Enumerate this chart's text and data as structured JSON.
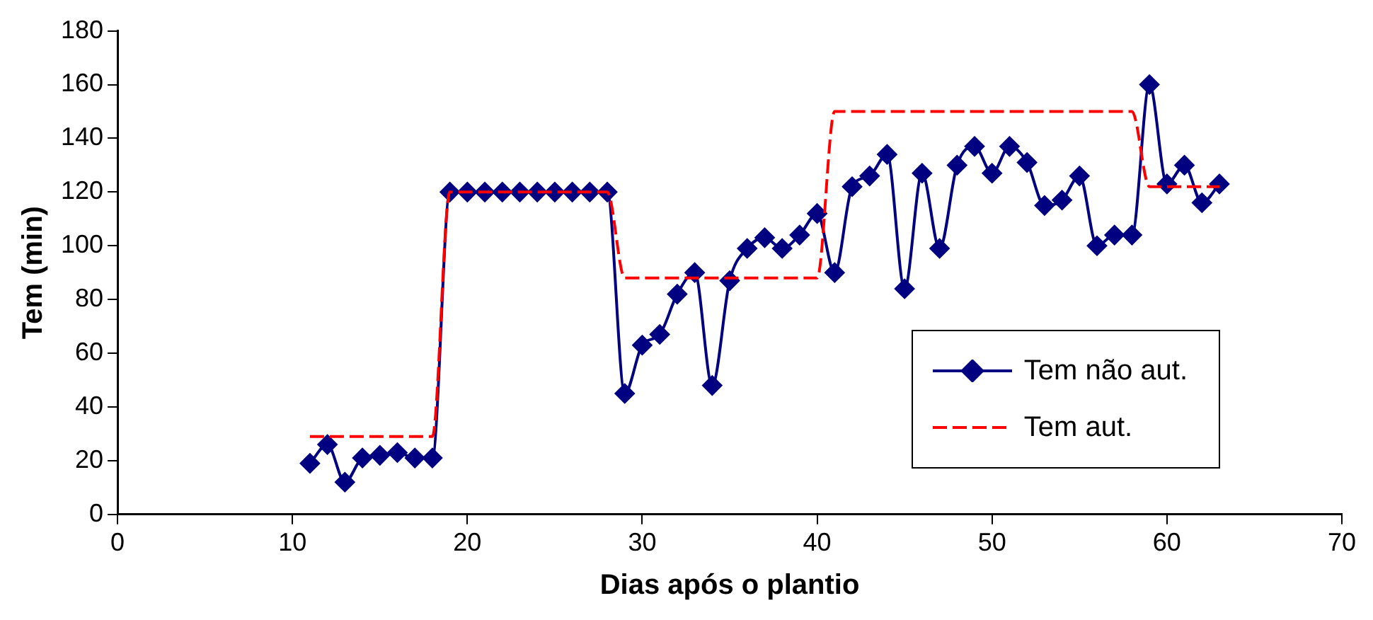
{
  "chart_data": {
    "type": "line",
    "xlabel": "Dias após o plantio",
    "ylabel": "Tem (min)",
    "xlim": [
      0,
      70
    ],
    "xticks": [
      0,
      10,
      20,
      30,
      40,
      50,
      60,
      70
    ],
    "ylim": [
      0,
      180
    ],
    "yticks": [
      0,
      20,
      40,
      60,
      80,
      100,
      120,
      140,
      160,
      180
    ],
    "grid": false,
    "legend": "right",
    "series": [
      {
        "name": "Tem não aut.",
        "color": "#000080",
        "marker": "diamond",
        "line_style": "solid",
        "x": [
          11,
          12,
          13,
          14,
          15,
          16,
          17,
          18,
          19,
          20,
          21,
          22,
          23,
          24,
          25,
          26,
          27,
          28,
          29,
          30,
          31,
          32,
          33,
          34,
          35,
          36,
          37,
          38,
          39,
          40,
          41,
          42,
          43,
          44,
          45,
          46,
          47,
          48,
          49,
          50,
          51,
          52,
          53,
          54,
          55,
          56,
          57,
          58,
          59,
          60,
          61,
          62,
          63
        ],
        "values": [
          19,
          26,
          12,
          21,
          22,
          23,
          21,
          21,
          120,
          120,
          120,
          120,
          120,
          120,
          120,
          120,
          120,
          120,
          45,
          63,
          67,
          82,
          90,
          48,
          87,
          99,
          103,
          99,
          104,
          112,
          90,
          122,
          126,
          134,
          84,
          127,
          99,
          130,
          137,
          127,
          137,
          131,
          115,
          117,
          126,
          100,
          104,
          104,
          160,
          123,
          130,
          116,
          123
        ]
      },
      {
        "name": "Tem aut.",
        "color": "#ff0000",
        "marker": "none",
        "line_style": "dashed",
        "x": [
          11,
          12,
          13,
          14,
          15,
          16,
          17,
          18,
          19,
          20,
          21,
          22,
          23,
          24,
          25,
          26,
          27,
          28,
          29,
          30,
          31,
          32,
          33,
          34,
          35,
          36,
          37,
          38,
          39,
          40,
          41,
          42,
          43,
          44,
          45,
          46,
          47,
          48,
          49,
          50,
          51,
          52,
          53,
          54,
          55,
          56,
          57,
          58,
          59,
          60,
          61,
          62,
          63
        ],
        "values": [
          29,
          29,
          29,
          29,
          29,
          29,
          29,
          29,
          120,
          120,
          120,
          120,
          120,
          120,
          120,
          120,
          120,
          120,
          88,
          88,
          88,
          88,
          88,
          88,
          88,
          88,
          88,
          88,
          88,
          88,
          150,
          150,
          150,
          150,
          150,
          150,
          150,
          150,
          150,
          150,
          150,
          150,
          150,
          150,
          150,
          150,
          150,
          150,
          122,
          122,
          122,
          122,
          122
        ]
      }
    ]
  }
}
